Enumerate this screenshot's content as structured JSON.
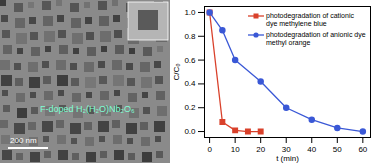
{
  "image": {
    "label": "F-doped H₂(H₂O)Nb₂O₆",
    "scale_bar": "200 nm"
  },
  "chart_data": {
    "type": "line",
    "x_label": "t (min)",
    "y_label": "C/C₀",
    "xlim": [
      -2,
      63
    ],
    "xticks": [
      0,
      10,
      20,
      30,
      40,
      50,
      60
    ],
    "ylim": [
      -0.05,
      1.05
    ],
    "yticks": [
      {
        "value": 0,
        "label": "0.0"
      },
      {
        "value": 0.2,
        "label": "0.2"
      },
      {
        "value": 0.4,
        "label": "0.4"
      },
      {
        "value": 0.6,
        "label": "0.6"
      },
      {
        "value": 0.8,
        "label": "0.8"
      },
      {
        "value": 1,
        "label": "1.0"
      }
    ],
    "legend": "upper right",
    "series": [
      {
        "name": "photodegradation of cationic dye methylene blue",
        "color": "#d9412b",
        "marker": "square",
        "x": [
          0,
          5,
          10,
          15,
          20
        ],
        "values": [
          1.0,
          0.08,
          0.01,
          0.0,
          0.0
        ]
      },
      {
        "name": "photodegradation of anionic dye methyl orange",
        "color": "#3a58d6",
        "marker": "circle",
        "x": [
          0,
          5,
          10,
          20,
          30,
          40,
          50,
          60
        ],
        "values": [
          1.0,
          0.85,
          0.6,
          0.42,
          0.2,
          0.1,
          0.03,
          0.0
        ]
      }
    ]
  }
}
